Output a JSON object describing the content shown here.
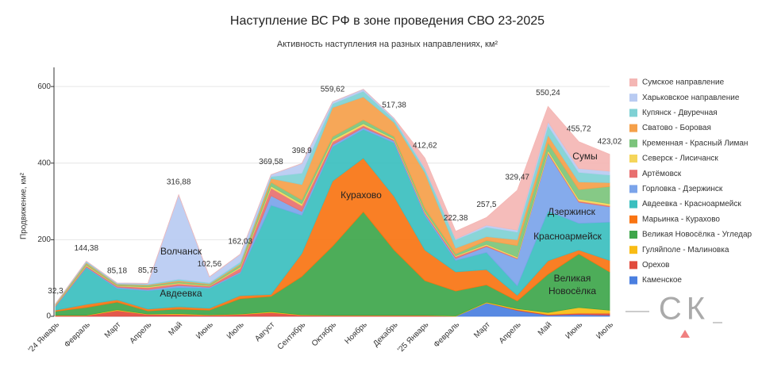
{
  "chart_data": {
    "type": "stacked-area",
    "title": "Наступление ВС РФ в зоне проведения СВО 23-2025",
    "subtitle": "Активность наступления на разных направлениях, км²",
    "y_label": "Продвижение, км²",
    "categories": [
      "'24 Январь",
      "Февраль",
      "Март",
      "Апрель",
      "Май",
      "Июнь",
      "Июль",
      "Август",
      "Сентябрь",
      "Октябрь",
      "Ноябрь",
      "Декабрь",
      "'25 Январь",
      "Февраль",
      "Март",
      "Апрель",
      "Май",
      "Июнь",
      "Июль"
    ],
    "ylim": [
      0,
      650
    ],
    "yticks": [
      0,
      200,
      400,
      600
    ],
    "grid": true,
    "series": [
      {
        "name": "Каменское",
        "color": "#4a7fe0",
        "values": [
          0,
          0,
          0,
          0,
          0,
          0,
          0,
          0,
          0,
          0,
          0,
          0,
          0,
          0,
          35,
          15,
          3,
          5,
          3
        ]
      },
      {
        "name": "Орехов",
        "color": "#e14b3d",
        "values": [
          2,
          2,
          15,
          5,
          5,
          3,
          5,
          10,
          3,
          2,
          2,
          2,
          2,
          0,
          0,
          2,
          2,
          3,
          5
        ]
      },
      {
        "name": "Гуляйполе - Малиновка",
        "color": "#f9bc15",
        "values": [
          1,
          1,
          2,
          1,
          2,
          1,
          1,
          2,
          1,
          1,
          1,
          1,
          1,
          1,
          2,
          3,
          5,
          15,
          8
        ]
      },
      {
        "name": "Великая Новосёлка - Угледар",
        "color": "#3ea64b",
        "values": [
          10,
          20,
          20,
          8,
          12,
          12,
          40,
          40,
          100,
          180,
          270,
          170,
          90,
          65,
          45,
          20,
          100,
          140,
          100
        ]
      },
      {
        "name": "Марьинка - Курахово",
        "color": "#f97412",
        "values": [
          3,
          8,
          6,
          5,
          6,
          5,
          8,
          5,
          60,
          170,
          140,
          140,
          80,
          50,
          40,
          15,
          35,
          10,
          30
        ]
      },
      {
        "name": "Авдеевка - Красноармейск",
        "color": "#3bbfbf",
        "values": [
          10,
          96,
          30,
          48,
          50,
          52,
          59,
          233,
          100,
          90,
          75,
          140,
          90,
          30,
          45,
          25,
          130,
          70,
          100
        ]
      },
      {
        "name": "Горловка - Дзержинск",
        "color": "#7ba4ea",
        "values": [
          1,
          2,
          3,
          3,
          5,
          3,
          3,
          25,
          10,
          5,
          5,
          5,
          5,
          5,
          15,
          70,
          150,
          55,
          40
        ]
      },
      {
        "name": "Артёмовск",
        "color": "#e87070",
        "values": [
          2,
          3,
          3,
          5,
          5,
          3,
          10,
          20,
          15,
          8,
          5,
          3,
          3,
          5,
          3,
          2,
          3,
          3,
          3
        ]
      },
      {
        "name": "Северск - Лисичанск",
        "color": "#f5d55a",
        "values": [
          1,
          2,
          1,
          2,
          2,
          1,
          3,
          5,
          5,
          5,
          5,
          3,
          3,
          2,
          3,
          3,
          5,
          5,
          5
        ]
      },
      {
        "name": "Кременная - Красный Лиман",
        "color": "#7cc47c",
        "values": [
          1,
          3,
          2,
          3,
          3,
          3,
          5,
          10,
          10,
          8,
          10,
          5,
          8,
          5,
          10,
          30,
          20,
          25,
          45
        ]
      },
      {
        "name": "Сватово - Боровая",
        "color": "#f5a04a",
        "values": [
          1,
          3,
          2,
          2,
          3,
          2,
          3,
          10,
          40,
          76,
          60,
          37,
          93,
          15,
          10,
          15,
          20,
          20,
          10
        ]
      },
      {
        "name": "Купянск - Двуречная",
        "color": "#7fd1d4",
        "values": [
          1,
          3,
          2,
          2,
          4,
          3,
          5,
          5,
          30,
          10,
          15,
          8,
          10,
          22,
          25,
          20,
          25,
          25,
          20
        ]
      },
      {
        "name": "Харьковское направление",
        "color": "#b9cbf2",
        "values": [
          0,
          1,
          1,
          2,
          220,
          15,
          20,
          5,
          25,
          5,
          5,
          3,
          3,
          2,
          5,
          5,
          10,
          10,
          10
        ]
      },
      {
        "name": "Сумское направление",
        "color": "#f4b6b4",
        "values": [
          0,
          0,
          0,
          0,
          0,
          0,
          0,
          0,
          0,
          0,
          0,
          0,
          25,
          20,
          20,
          104,
          40,
          70,
          44
        ]
      }
    ],
    "totals": [
      32.3,
      144.38,
      85.18,
      85.75,
      316.88,
      102.56,
      162.03,
      369.58,
      398.9,
      559.62,
      null,
      517.38,
      412.62,
      222.38,
      257.5,
      329.47,
      550.24,
      455.72,
      423.02
    ],
    "total_labels": [
      "32,3",
      "144,38",
      "85,18",
      "85,75",
      "316,88",
      "102,56",
      "162,03",
      "369,58",
      "398,9",
      "559,62",
      null,
      "517,38",
      "412,62",
      "222,38",
      "257,5",
      "329,47",
      "550,24",
      "455,72",
      "423,02"
    ],
    "annotations": [
      "Волчанск",
      "Авдеевка",
      "Курахово",
      "Дзержинск",
      "Красноармейск",
      "Великая",
      "Новосёлка",
      "Сумы"
    ],
    "logo": "СК"
  }
}
